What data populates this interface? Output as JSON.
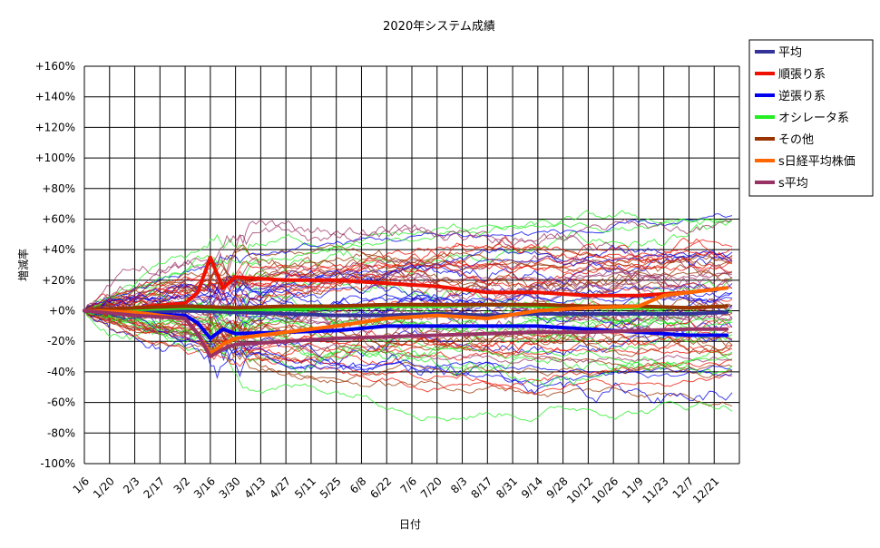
{
  "chart_data": {
    "type": "line",
    "title": "2020年システム成績",
    "xlabel": "日付",
    "ylabel": "増減率",
    "ylim": [
      -100,
      160
    ],
    "y_ticks": [
      "+160%",
      "+140%",
      "+120%",
      "+100%",
      "+80%",
      "+60%",
      "+40%",
      "+20%",
      "+0%",
      "-20%",
      "-40%",
      "-60%",
      "-80%",
      "-100%"
    ],
    "x_ticks": [
      "1/6",
      "1/20",
      "2/3",
      "2/17",
      "3/2",
      "3/16",
      "3/30",
      "4/13",
      "4/27",
      "5/11",
      "5/25",
      "6/8",
      "6/22",
      "7/6",
      "7/20",
      "8/3",
      "8/17",
      "8/31",
      "9/14",
      "9/28",
      "10/12",
      "10/26",
      "11/9",
      "11/23",
      "12/7",
      "12/21"
    ],
    "grid": true,
    "legend_placement": "right",
    "colors": {
      "平均": "#333399",
      "順張り系": "#ee1100",
      "逆張り系": "#0000ee",
      "オシレータ系": "#22ee22",
      "その他": "#993300",
      "s日経平均株価": "#ff6600",
      "s平均": "#993366"
    },
    "series": [
      {
        "name": "平均",
        "color": "#333399",
        "x_index": [
          0,
          2,
          4,
          6,
          8,
          10,
          12,
          14,
          16,
          18,
          20,
          22,
          24,
          25.5
        ],
        "values": [
          0,
          -1,
          0,
          -1,
          -2,
          -3,
          -3,
          -2,
          -3,
          -2,
          -2,
          -2,
          -2,
          -1
        ]
      },
      {
        "name": "順張り系",
        "color": "#ee1100",
        "x_index": [
          0,
          2,
          4,
          4.5,
          5,
          5.5,
          6,
          8,
          10,
          12,
          14,
          16,
          18,
          20,
          22,
          24,
          25.5
        ],
        "values": [
          0,
          2,
          5,
          12,
          35,
          15,
          22,
          20,
          20,
          18,
          16,
          12,
          12,
          10,
          10,
          12,
          15
        ]
      },
      {
        "name": "逆張り系",
        "color": "#0000ee",
        "x_index": [
          0,
          2,
          4,
          4.5,
          5,
          5.5,
          6,
          8,
          10,
          12,
          14,
          16,
          18,
          20,
          22,
          24,
          25.5
        ],
        "values": [
          0,
          -2,
          -3,
          -8,
          -18,
          -12,
          -15,
          -14,
          -13,
          -10,
          -10,
          -10,
          -10,
          -12,
          -14,
          -16,
          -16
        ]
      },
      {
        "name": "オシレータ系",
        "color": "#22ee22",
        "x_index": [
          0,
          2,
          4,
          6,
          8,
          10,
          12,
          14,
          16,
          18,
          20,
          22,
          24,
          25.5
        ],
        "values": [
          0,
          1,
          2,
          1,
          1,
          2,
          3,
          3,
          4,
          3,
          2,
          2,
          2,
          3
        ]
      },
      {
        "name": "その他",
        "color": "#993300",
        "x_index": [
          0,
          2,
          4,
          6,
          8,
          10,
          12,
          14,
          16,
          18,
          20,
          22,
          24,
          25.5
        ],
        "values": [
          0,
          2,
          3,
          2,
          3,
          3,
          4,
          4,
          4,
          4,
          3,
          3,
          2,
          3
        ]
      },
      {
        "name": "s日経平均株価",
        "color": "#ff6600",
        "x_index": [
          0,
          2,
          4,
          4.5,
          5,
          5.5,
          6,
          8,
          10,
          12,
          14,
          16,
          18,
          20,
          22,
          23,
          24,
          25.5
        ],
        "values": [
          0,
          -1,
          -5,
          -15,
          -28,
          -22,
          -18,
          -14,
          -10,
          -5,
          -3,
          -5,
          0,
          2,
          3,
          10,
          12,
          15
        ]
      },
      {
        "name": "s平均",
        "color": "#993366",
        "x_index": [
          0,
          2,
          4,
          4.5,
          5,
          5.5,
          6,
          8,
          10,
          12,
          14,
          16,
          18,
          20,
          22,
          24,
          25.5
        ],
        "values": [
          0,
          -3,
          -5,
          -15,
          -30,
          -25,
          -22,
          -20,
          -18,
          -17,
          -16,
          -15,
          -14,
          -14,
          -13,
          -12,
          -12
        ]
      }
    ],
    "legend": [
      "平均",
      "順張り系",
      "逆張り系",
      "オシレータ系",
      "その他",
      "s日経平均株価",
      "s平均"
    ]
  }
}
